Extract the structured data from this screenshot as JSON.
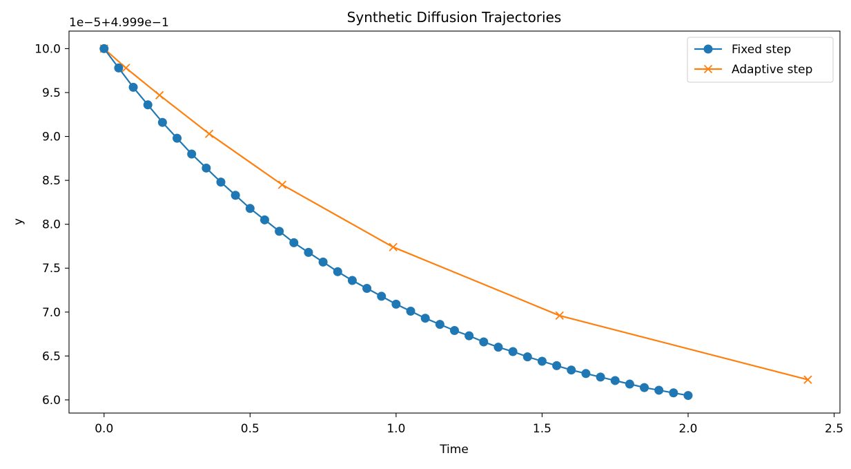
{
  "chart_data": {
    "type": "line",
    "title": "Synthetic Diffusion Trajectories",
    "xlabel": "Time",
    "ylabel": "y",
    "y_offset_label": "1e−5+4.999e−1",
    "xlim": [
      -0.12,
      2.52
    ],
    "ylim": [
      5.85,
      10.2
    ],
    "x_ticks": [
      0.0,
      0.5,
      1.0,
      1.5,
      2.0,
      2.5
    ],
    "x_tick_labels": [
      "0.0",
      "0.5",
      "1.0",
      "1.5",
      "2.0",
      "2.5"
    ],
    "y_ticks": [
      6.0,
      6.5,
      7.0,
      7.5,
      8.0,
      8.5,
      9.0,
      9.5,
      10.0
    ],
    "y_tick_labels": [
      "6.0",
      "6.5",
      "7.0",
      "7.5",
      "8.0",
      "8.5",
      "9.0",
      "9.5",
      "10.0"
    ],
    "grid": false,
    "legend_position": "top-right",
    "series": [
      {
        "name": "Fixed step",
        "color": "#1f77b4",
        "marker": "circle",
        "x": [
          0.0,
          0.05,
          0.1,
          0.15,
          0.2,
          0.25,
          0.3,
          0.35,
          0.4,
          0.45,
          0.5,
          0.55,
          0.6,
          0.65,
          0.7,
          0.75,
          0.8,
          0.85,
          0.9,
          0.95,
          1.0,
          1.05,
          1.1,
          1.15,
          1.2,
          1.25,
          1.3,
          1.35,
          1.4,
          1.45,
          1.5,
          1.55,
          1.6,
          1.65,
          1.7,
          1.75,
          1.8,
          1.85,
          1.9,
          1.95,
          2.0
        ],
        "y": [
          10.0,
          9.78,
          9.56,
          9.36,
          9.16,
          8.98,
          8.8,
          8.64,
          8.48,
          8.33,
          8.18,
          8.05,
          7.92,
          7.79,
          7.68,
          7.57,
          7.46,
          7.36,
          7.27,
          7.18,
          7.09,
          7.01,
          6.93,
          6.86,
          6.79,
          6.73,
          6.66,
          6.6,
          6.55,
          6.49,
          6.44,
          6.39,
          6.34,
          6.3,
          6.26,
          6.22,
          6.18,
          6.14,
          6.11,
          6.08,
          6.05
        ]
      },
      {
        "name": "Adaptive step",
        "color": "#ff7f0e",
        "marker": "x",
        "x": [
          0.0,
          0.075,
          0.19,
          0.36,
          0.61,
          0.99,
          1.56,
          2.41
        ],
        "y": [
          10.0,
          9.78,
          9.47,
          9.03,
          8.45,
          7.74,
          6.96,
          6.23
        ]
      }
    ]
  }
}
